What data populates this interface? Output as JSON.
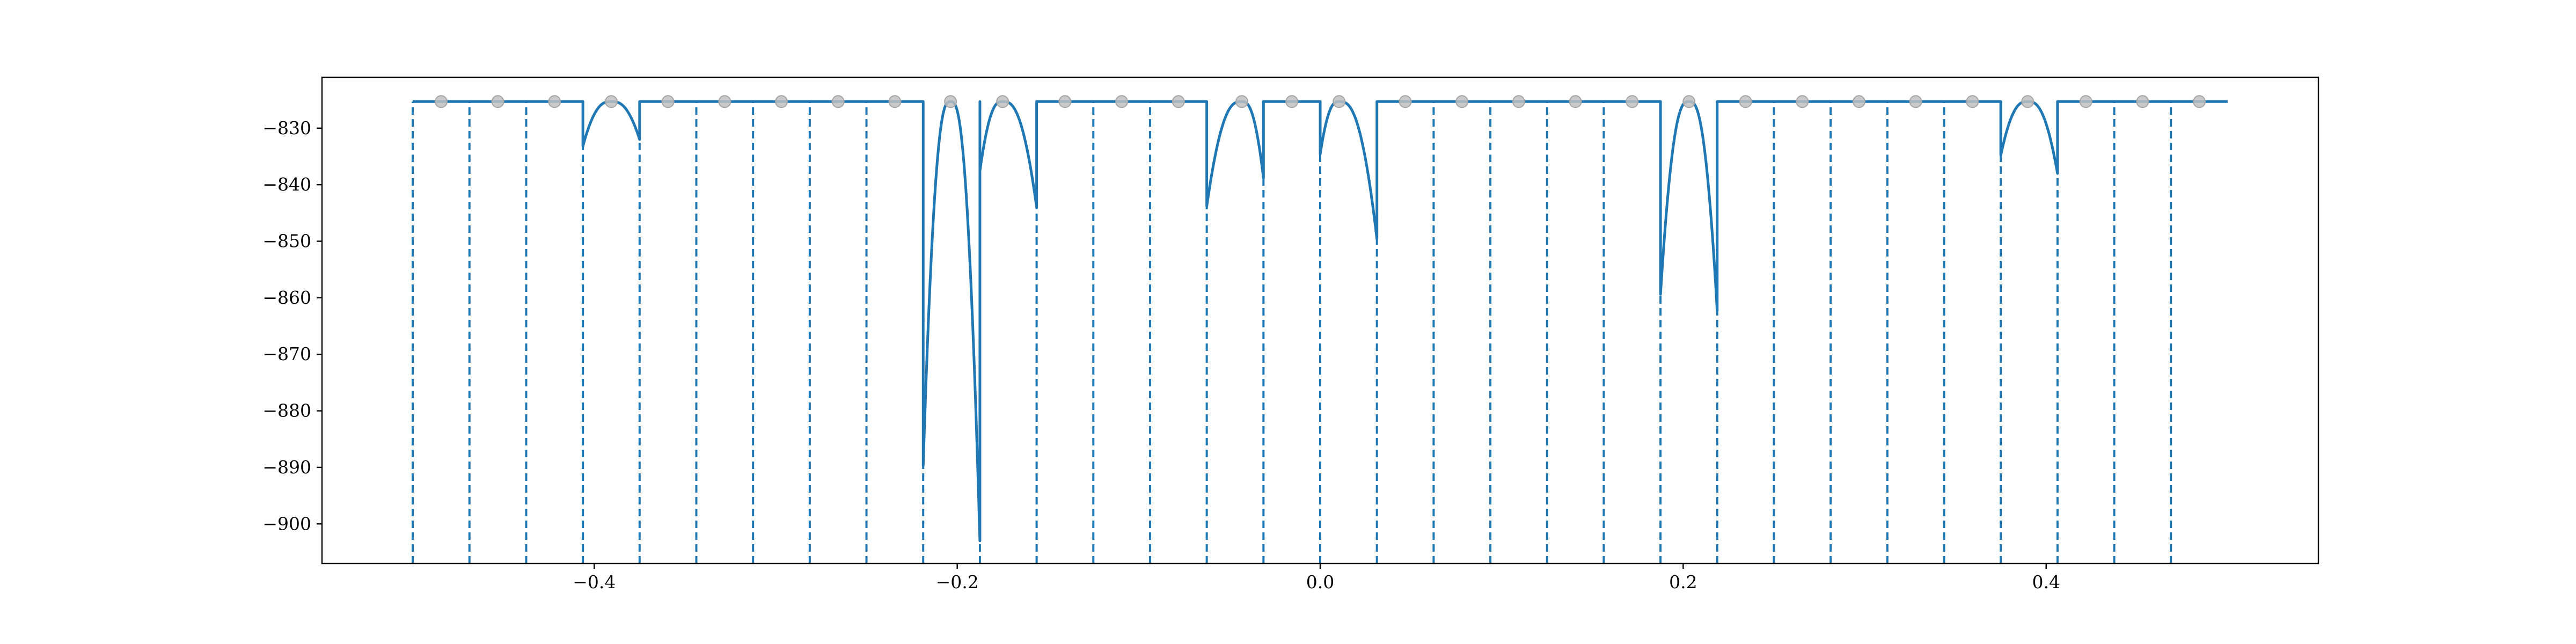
{
  "chart_data": {
    "type": "line",
    "title": "",
    "xlabel": "",
    "ylabel": "",
    "xlim": [
      -0.55,
      0.55
    ],
    "ylim": [
      -907,
      -821
    ],
    "grid": false,
    "x_ticks": [
      -0.4,
      -0.2,
      0.0,
      0.2,
      0.4
    ],
    "x_tick_labels": [
      "−0.4",
      "−0.2",
      "0.0",
      "0.2",
      "0.4"
    ],
    "y_ticks": [
      -830,
      -840,
      -850,
      -860,
      -870,
      -880,
      -890,
      -900
    ],
    "y_tick_labels": [
      "−830",
      "−840",
      "−850",
      "−860",
      "−870",
      "−880",
      "−890",
      "−900"
    ],
    "colors": {
      "line": "#1f77b4",
      "marker": "#bfbfbf"
    },
    "baseline": -825.3,
    "x_start": -0.5,
    "x_end": 0.5,
    "interval_width": 0.03125,
    "boundaries": [
      -0.5,
      -0.46875,
      -0.4375,
      -0.40625,
      -0.375,
      -0.34375,
      -0.3125,
      -0.28125,
      -0.25,
      -0.21875,
      -0.1875,
      -0.15625,
      -0.125,
      -0.09375,
      -0.0625,
      -0.03125,
      0.0,
      0.03125,
      0.0625,
      0.09375,
      0.125,
      0.15625,
      0.1875,
      0.21875,
      0.25,
      0.28125,
      0.3125,
      0.34375,
      0.375,
      0.40625,
      0.4375,
      0.46875
    ],
    "markers": {
      "x": [
        -0.484375,
        -0.453125,
        -0.421875,
        -0.390625,
        -0.359375,
        -0.328125,
        -0.296875,
        -0.265625,
        -0.234375,
        -0.2037,
        -0.175,
        -0.140625,
        -0.109375,
        -0.078125,
        -0.0432,
        -0.015625,
        0.0104,
        0.046875,
        0.078125,
        0.109375,
        0.140625,
        0.171875,
        0.2032,
        0.234375,
        0.265625,
        0.296875,
        0.328125,
        0.359375,
        0.3898,
        0.421875,
        0.453125,
        0.484375
      ],
      "y": [
        -825.3,
        -825.3,
        -825.3,
        -825.3,
        -825.3,
        -825.3,
        -825.3,
        -825.3,
        -825.3,
        -825.3,
        -825.3,
        -825.3,
        -825.3,
        -825.3,
        -825.3,
        -825.3,
        -825.3,
        -825.3,
        -825.3,
        -825.3,
        -825.3,
        -825.3,
        -825.3,
        -825.3,
        -825.3,
        -825.3,
        -825.3,
        -825.3,
        -825.3,
        -825.3,
        -825.3,
        -825.3
      ]
    },
    "wells": [
      {
        "start": -0.40625,
        "end": -0.375,
        "peak_x": -0.390625,
        "y_start": -833.2,
        "y_end": -832.0
      },
      {
        "start": -0.21875,
        "end": -0.1875,
        "peak_x": -0.2037,
        "y_start": -889.7,
        "y_end": -903.0
      },
      {
        "start": -0.1875,
        "end": -0.15625,
        "peak_x": -0.175,
        "y_start": -837.6,
        "y_end": -844.0
      },
      {
        "start": -0.0625,
        "end": -0.03125,
        "peak_x": -0.0432,
        "y_start": -843.8,
        "y_end": -838.8
      },
      {
        "start": 0.0,
        "end": 0.03125,
        "peak_x": 0.0104,
        "y_start": -834.6,
        "y_end": -849.6
      },
      {
        "start": 0.1875,
        "end": 0.21875,
        "peak_x": 0.2032,
        "y_start": -859.4,
        "y_end": -862.3
      },
      {
        "start": 0.375,
        "end": 0.40625,
        "peak_x": 0.3898,
        "y_start": -834.8,
        "y_end": -838.0
      }
    ]
  }
}
